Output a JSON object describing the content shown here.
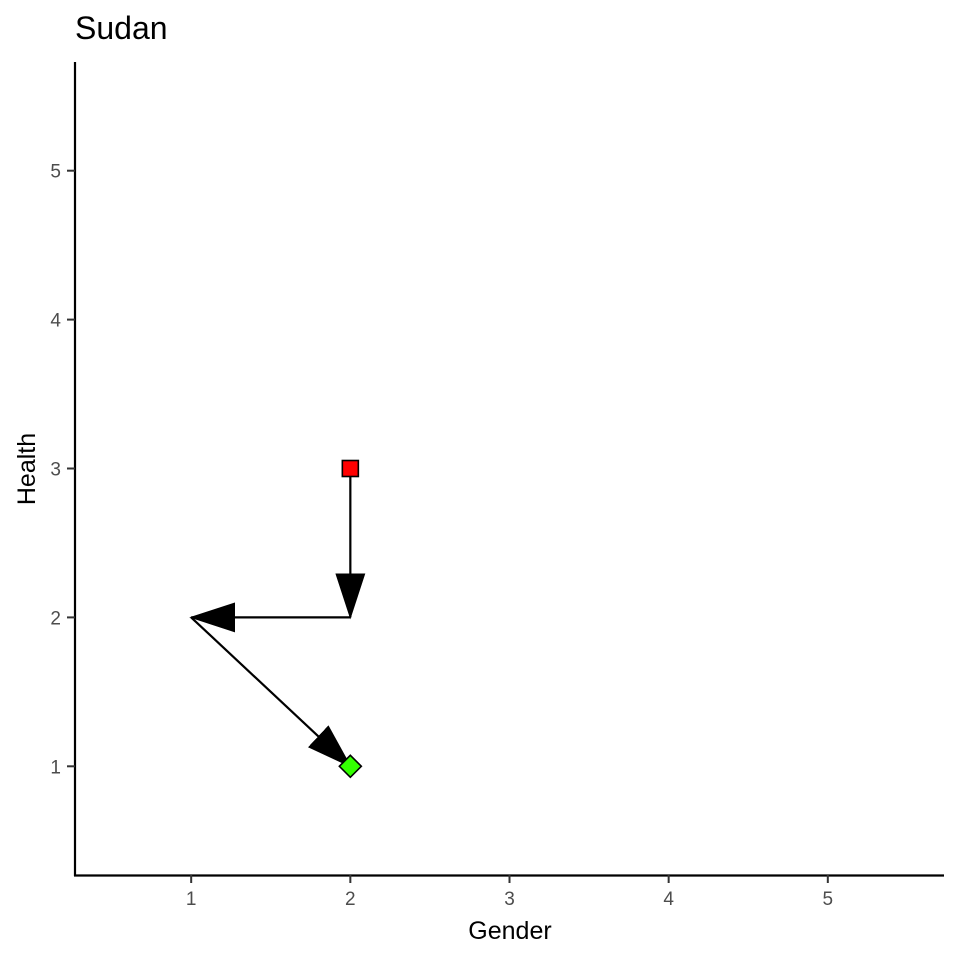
{
  "chart_data": {
    "type": "path",
    "title": "Sudan",
    "xlabel": "Gender",
    "ylabel": "Health",
    "xlim": [
      0.27,
      5.73
    ],
    "ylim": [
      0.27,
      5.73
    ],
    "x_ticks": [
      1,
      2,
      3,
      4,
      5
    ],
    "y_ticks": [
      1,
      2,
      3,
      4,
      5
    ],
    "grid": false,
    "path": [
      {
        "x": 2,
        "y": 3
      },
      {
        "x": 2,
        "y": 2
      },
      {
        "x": 1,
        "y": 2
      },
      {
        "x": 2,
        "y": 1
      }
    ],
    "start_point": {
      "x": 2,
      "y": 3,
      "shape": "square",
      "color": "#ff0000"
    },
    "end_point": {
      "x": 2,
      "y": 1,
      "shape": "diamond",
      "color": "#33ff00"
    }
  }
}
